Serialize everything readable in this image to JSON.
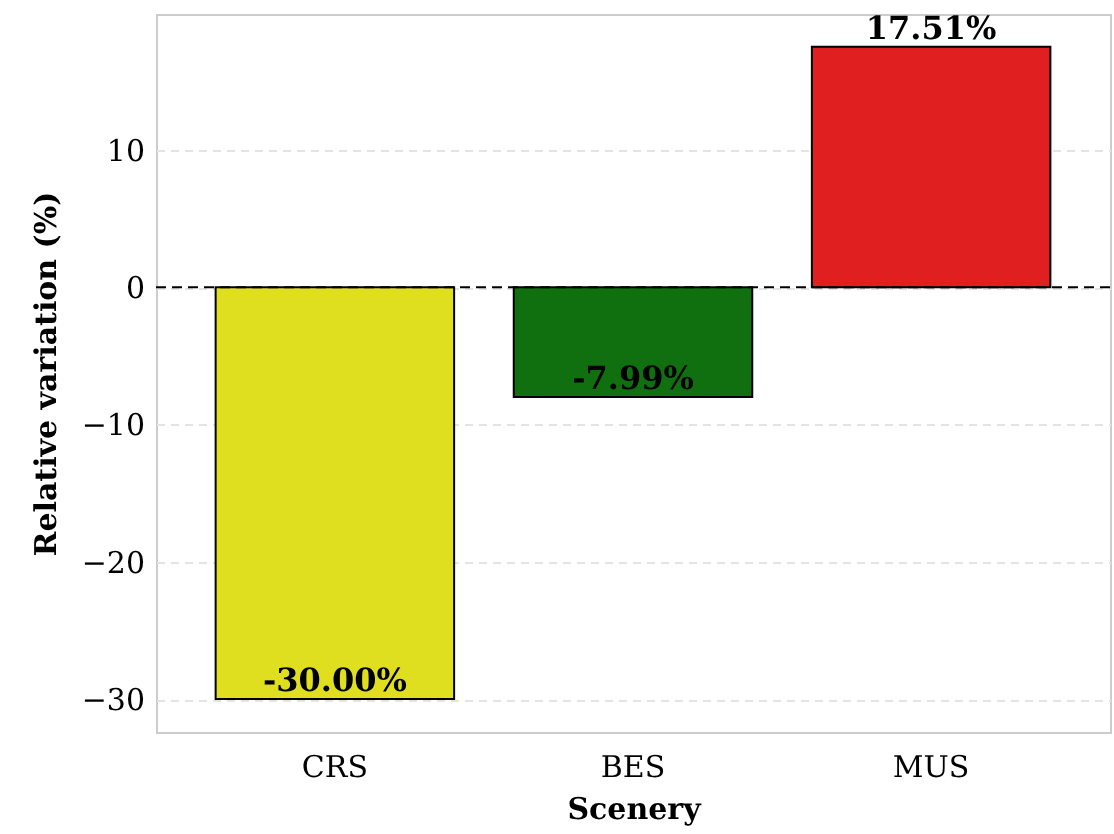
{
  "chart_data": {
    "type": "bar",
    "xlabel": "Scenery",
    "ylabel": "Relative variation (%)",
    "categories": [
      "CRS",
      "BES",
      "MUS"
    ],
    "values": [
      -30.0,
      -7.99,
      17.51
    ],
    "colors": [
      "#dfdf20",
      "#107010",
      "#e02020"
    ],
    "value_labels": [
      "-30.00%",
      "-7.99%",
      "17.51%"
    ],
    "ylim": [
      -32.4,
      19.9
    ],
    "yticks": [
      -30,
      -20,
      -10,
      0,
      10
    ],
    "grid": "y",
    "ref_lines": [
      {
        "axis": "y",
        "value": 0,
        "line_style": "dashed",
        "color": "#000000"
      }
    ]
  }
}
